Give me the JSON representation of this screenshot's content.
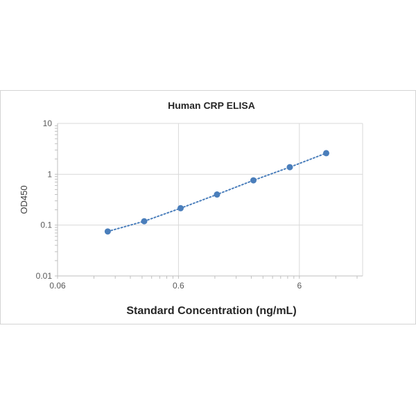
{
  "chart_data": {
    "type": "scatter",
    "title": "Human CRP ELISA",
    "xlabel": "Standard Concentration (ng/mL)",
    "ylabel": "OD450",
    "x_scale": "log",
    "y_scale": "log",
    "xlim": [
      0.06,
      20
    ],
    "ylim": [
      0.01,
      10
    ],
    "x_ticks": [
      {
        "value": 0.06,
        "label": "0.06"
      },
      {
        "value": 0.6,
        "label": "0.6"
      },
      {
        "value": 6,
        "label": "6"
      }
    ],
    "y_ticks": [
      {
        "value": 10,
        "label": "10"
      },
      {
        "value": 1,
        "label": "1"
      },
      {
        "value": 0.1,
        "label": "0.1"
      },
      {
        "value": 0.01,
        "label": "0.01"
      }
    ],
    "grid": true,
    "trendline": "dotted",
    "series": [
      {
        "color": "#4a7ebb",
        "x": [
          0.156,
          0.3125,
          0.625,
          1.25,
          2.5,
          5,
          10
        ],
        "y": [
          0.075,
          0.119,
          0.215,
          0.4,
          0.76,
          1.38,
          2.6
        ]
      }
    ]
  }
}
